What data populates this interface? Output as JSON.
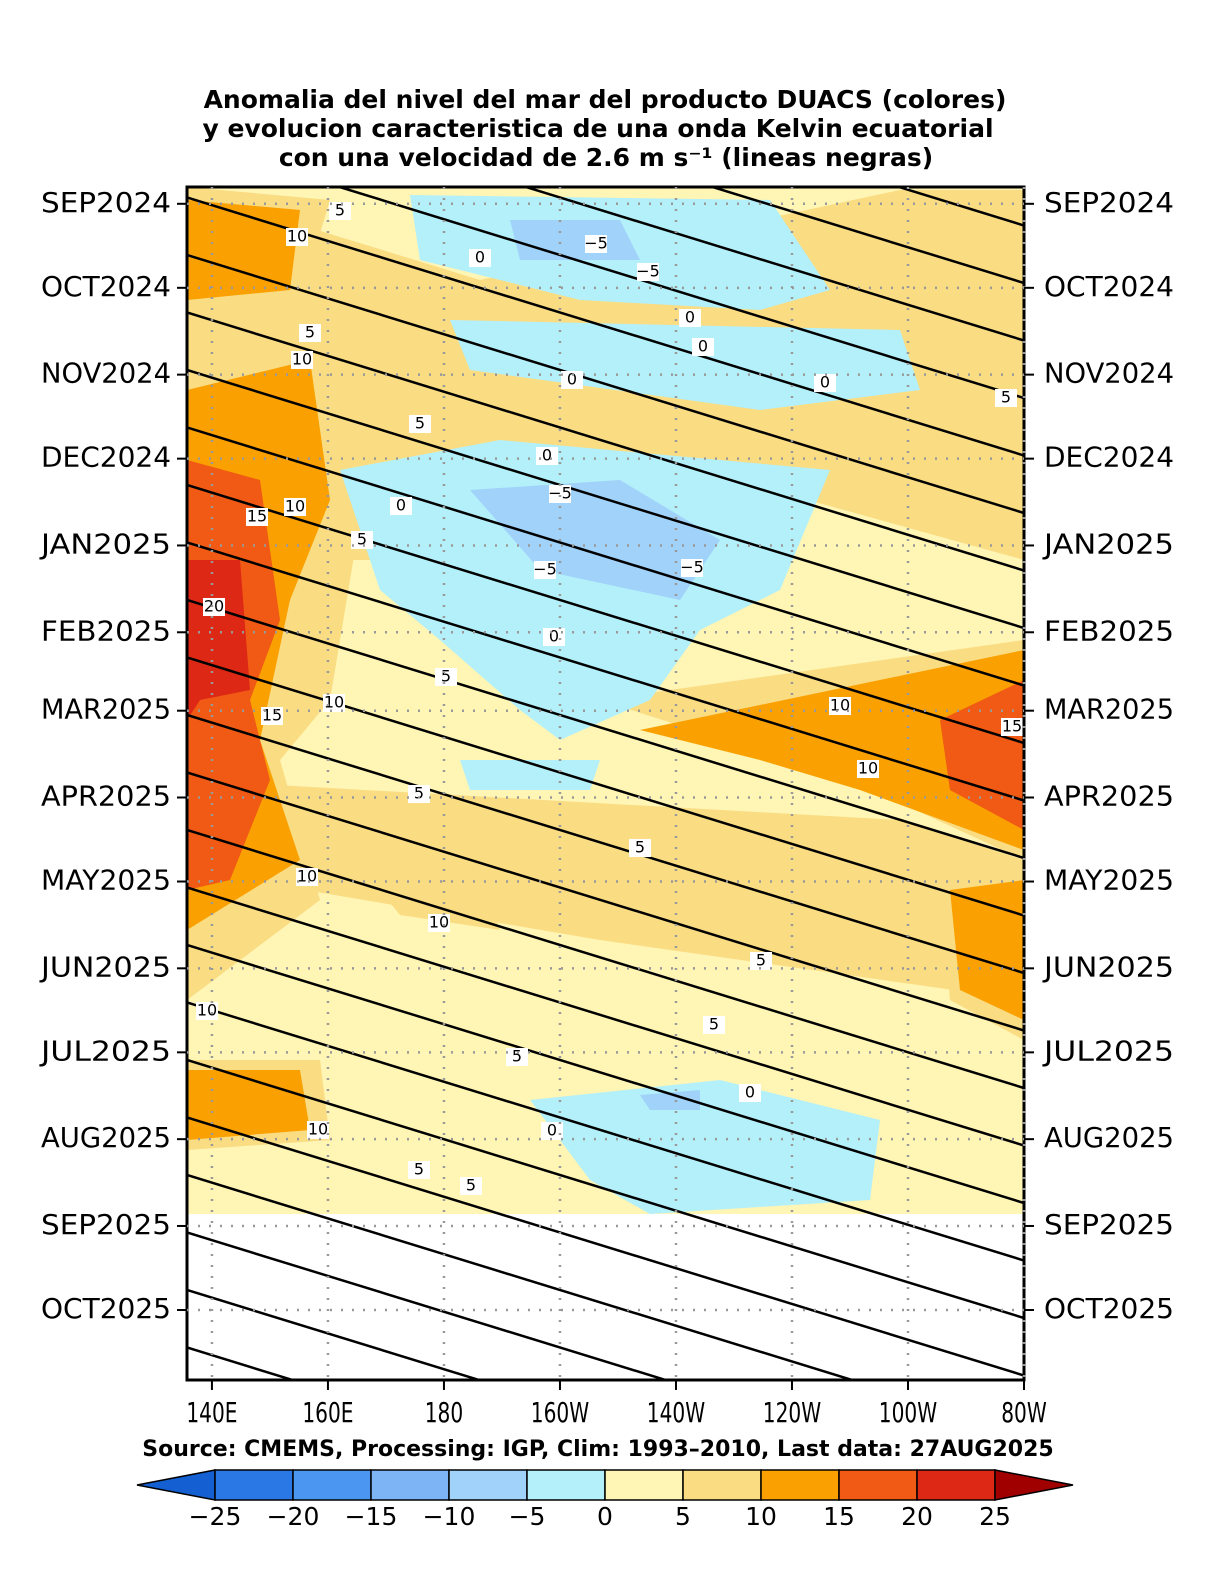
{
  "chart_data": {
    "type": "hovmoller",
    "title": [
      "Anomalia del nivel del mar del producto DUACS (colores)",
      "y evolucion caracteristica de una onda Kelvin ecuatorial",
      "con una velocidad de 2.6 m s⁻¹ (lineas negras)"
    ],
    "source": "Source: CMEMS, Processing: IGP, Clim: 1993–2010, Last data: 27AUG2025",
    "xlim": [
      135.7,
      280
    ],
    "xticks": [
      {
        "value": 140,
        "label": "140E"
      },
      {
        "value": 160,
        "label": "160E"
      },
      {
        "value": 180,
        "label": "180"
      },
      {
        "value": 200,
        "label": "160W"
      },
      {
        "value": 220,
        "label": "140W"
      },
      {
        "value": 240,
        "label": "120W"
      },
      {
        "value": 260,
        "label": "100W"
      },
      {
        "value": 280,
        "label": "80W"
      }
    ],
    "ylim": [
      "2024-08-26",
      "2025-10-26"
    ],
    "yticks": [
      {
        "value": "2024-09-01",
        "label": "SEP2024"
      },
      {
        "value": "2024-10-01",
        "label": "OCT2024"
      },
      {
        "value": "2024-11-01",
        "label": "NOV2024"
      },
      {
        "value": "2024-12-01",
        "label": "DEC2024"
      },
      {
        "value": "2025-01-01",
        "label": "JAN2025"
      },
      {
        "value": "2025-02-01",
        "label": "FEB2025"
      },
      {
        "value": "2025-03-01",
        "label": "MAR2025"
      },
      {
        "value": "2025-04-01",
        "label": "APR2025"
      },
      {
        "value": "2025-05-01",
        "label": "MAY2025"
      },
      {
        "value": "2025-06-01",
        "label": "JUN2025"
      },
      {
        "value": "2025-07-01",
        "label": "JUL2025"
      },
      {
        "value": "2025-08-01",
        "label": "AUG2025"
      },
      {
        "value": "2025-09-01",
        "label": "SEP2025"
      },
      {
        "value": "2025-10-01",
        "label": "OCT2025"
      }
    ],
    "grid": true,
    "colorbar": {
      "ticks": [
        -25,
        -20,
        -15,
        -10,
        -5,
        0,
        5,
        10,
        15,
        20,
        25
      ],
      "colors": [
        "#1460d2",
        "#2a78e6",
        "#4a96f0",
        "#7db4f5",
        "#a0d2fa",
        "#b4f0fa",
        "#fff5b4",
        "#fadc82",
        "#faa000",
        "#f05a14",
        "#dc2814",
        "#a00000"
      ]
    },
    "contour_labels": [
      5,
      10,
      0,
      -5,
      -5,
      0,
      5,
      10,
      0,
      5,
      0,
      0,
      5,
      0,
      -5,
      15,
      10,
      0,
      5,
      -5,
      -5,
      20,
      0,
      5,
      10,
      15,
      10,
      10,
      5,
      5,
      10,
      10,
      5,
      10,
      5,
      5,
      0,
      0,
      10,
      5,
      5,
      15
    ]
  }
}
